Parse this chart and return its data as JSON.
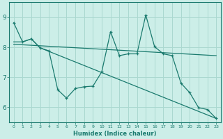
{
  "title": "",
  "xlabel": "Humidex (Indice chaleur)",
  "background_color": "#cceee8",
  "grid_color": "#aad8d0",
  "line_color": "#1a7a6e",
  "xlim": [
    -0.5,
    23.5
  ],
  "ylim": [
    5.5,
    9.5
  ],
  "xticks": [
    0,
    1,
    2,
    3,
    4,
    5,
    6,
    7,
    8,
    9,
    10,
    11,
    12,
    13,
    14,
    15,
    16,
    17,
    18,
    19,
    20,
    21,
    22,
    23
  ],
  "yticks": [
    6,
    7,
    8,
    9
  ],
  "line1_x": [
    0,
    1,
    2,
    3,
    4,
    5,
    6,
    7,
    8,
    9,
    10,
    11,
    12,
    13,
    14,
    15,
    16,
    17,
    18,
    19,
    20,
    21,
    22,
    23
  ],
  "line1_y": [
    8.82,
    8.18,
    8.28,
    7.98,
    7.88,
    6.58,
    6.3,
    6.62,
    6.68,
    6.7,
    7.18,
    8.52,
    7.72,
    7.78,
    7.78,
    9.08,
    8.02,
    7.78,
    7.72,
    6.8,
    6.48,
    5.98,
    5.92,
    5.62
  ],
  "line2_x": [
    0,
    1,
    2,
    3,
    23
  ],
  "line2_y": [
    8.18,
    8.18,
    8.28,
    7.98,
    5.62
  ],
  "line3_x": [
    0,
    23
  ],
  "line3_y": [
    8.1,
    7.72
  ]
}
